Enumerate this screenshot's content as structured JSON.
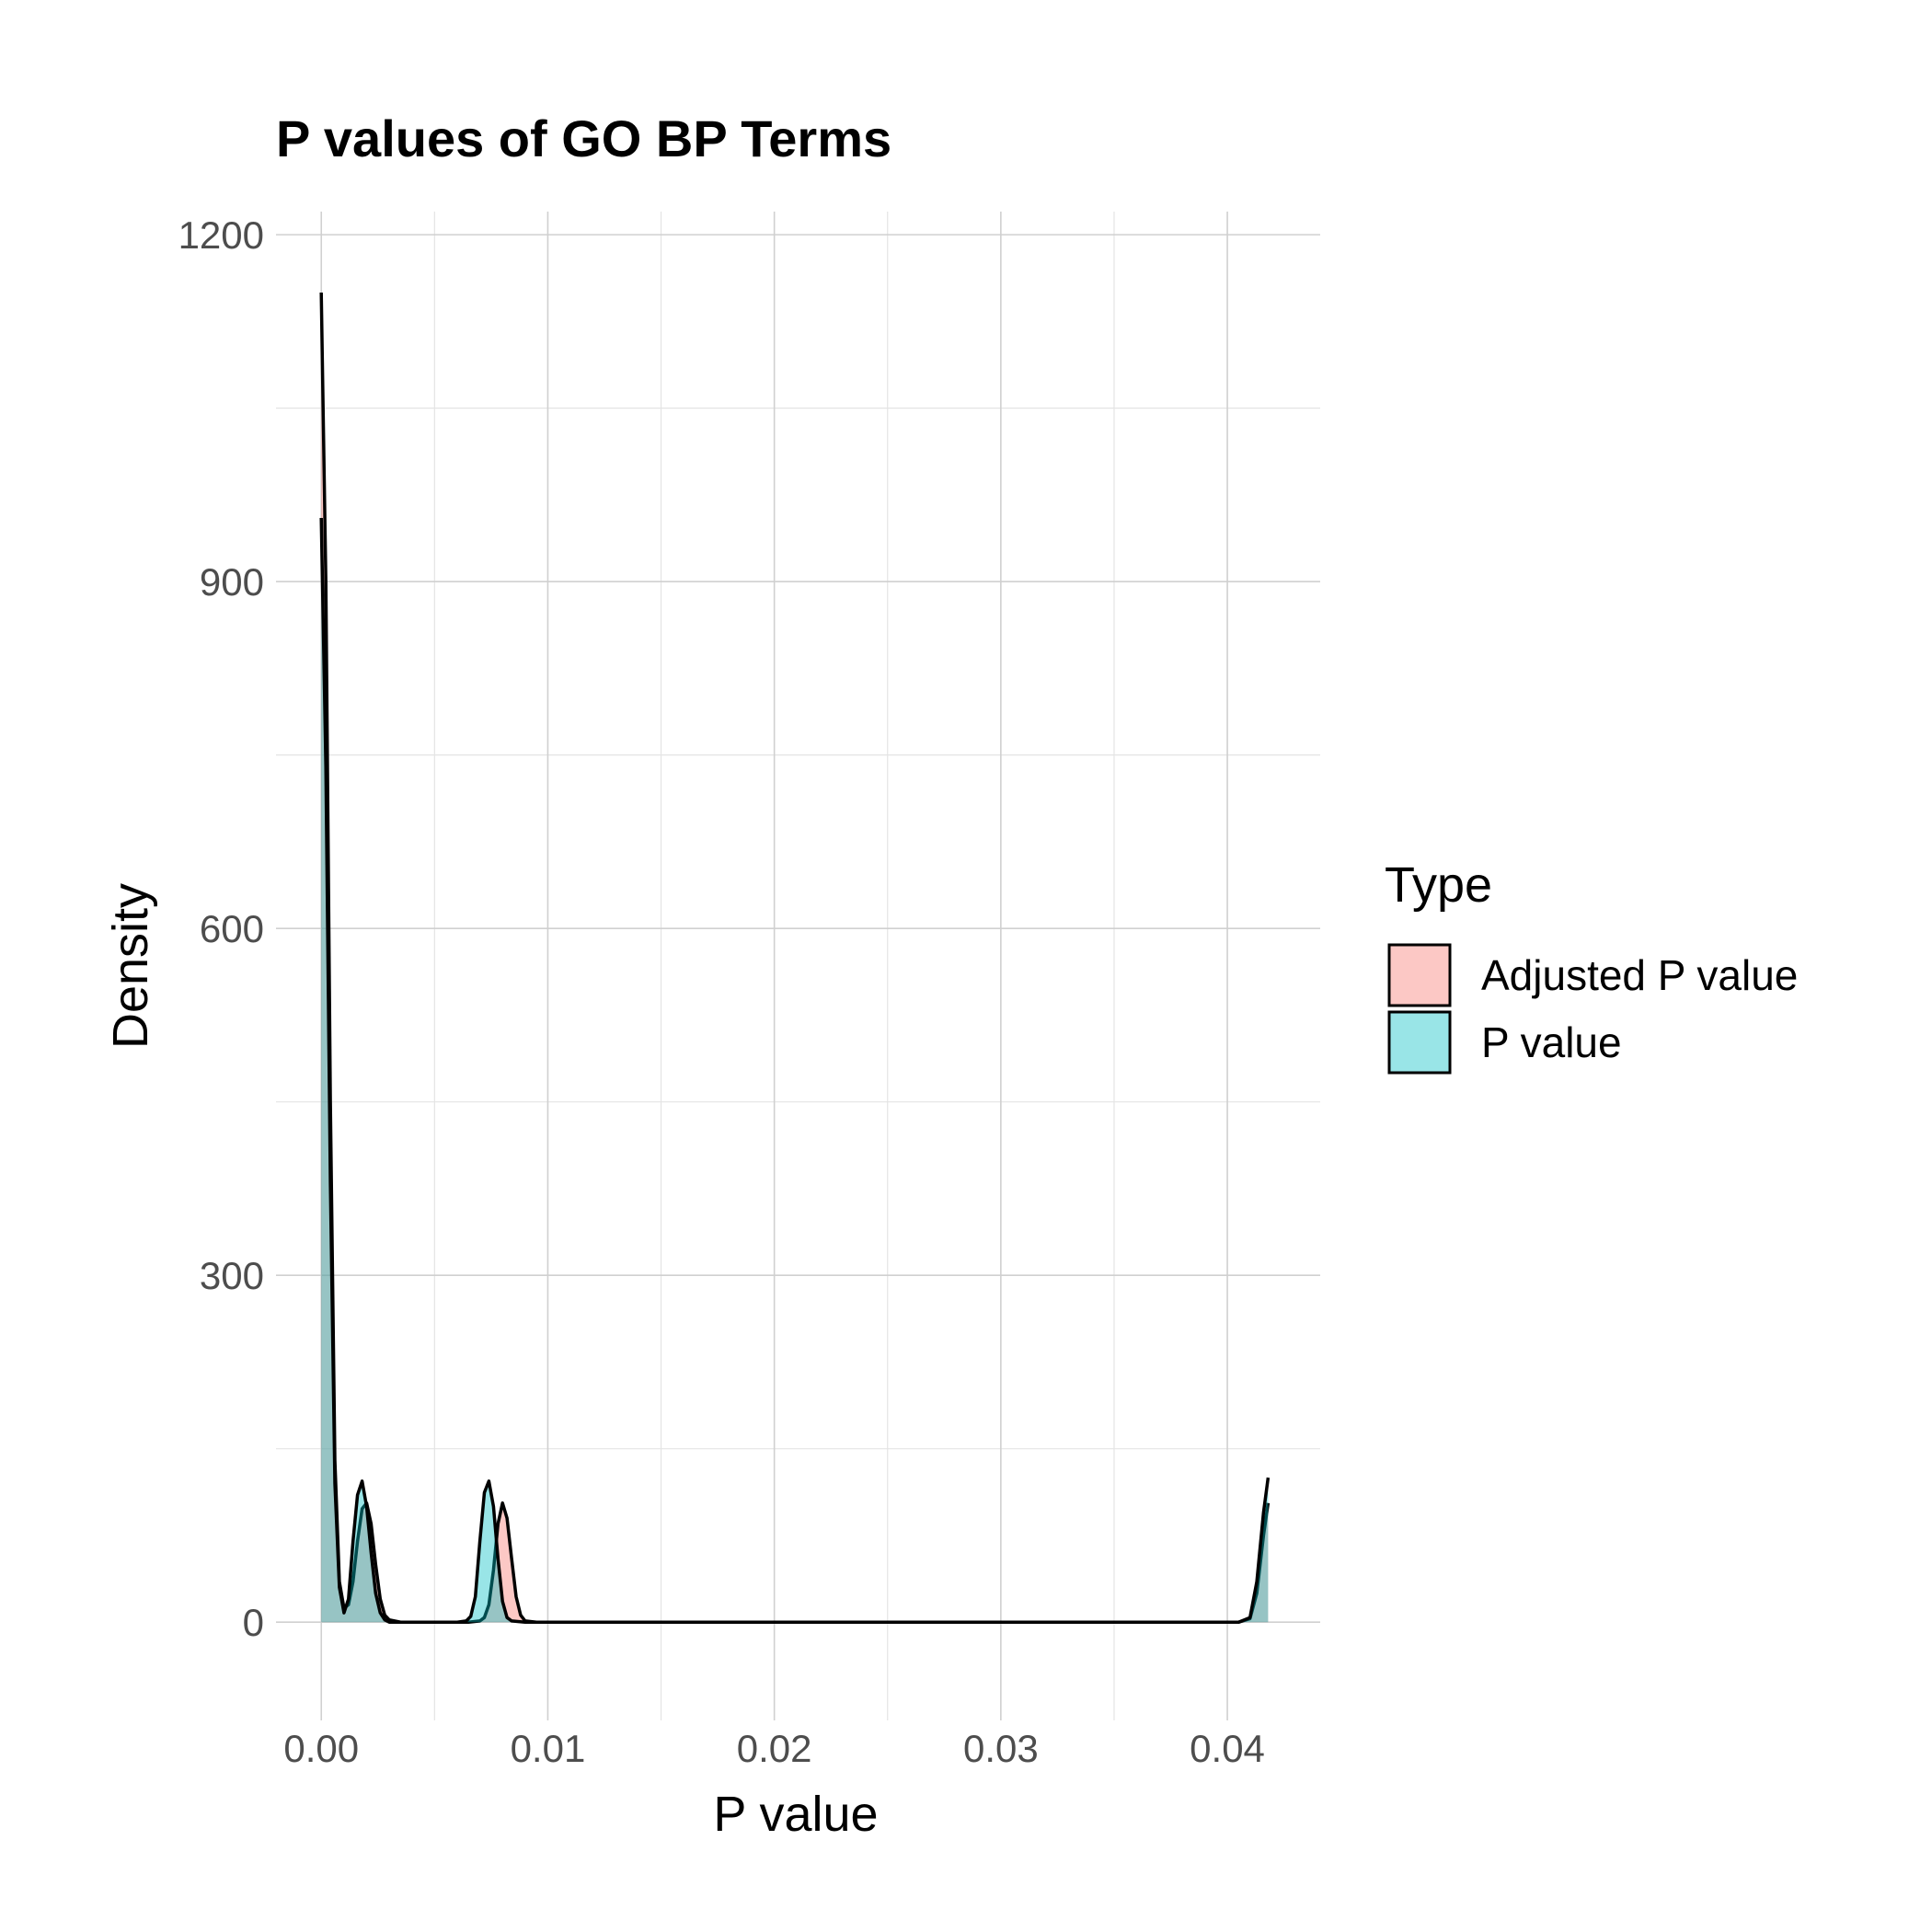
{
  "chart_data": {
    "type": "area",
    "title": "P values of GO BP Terms",
    "xlabel": "P value",
    "ylabel": "Density",
    "xlim": [
      -0.002,
      0.0441
    ],
    "ylim": [
      -85,
      1220
    ],
    "xticks": [
      0.0,
      0.01,
      0.02,
      0.03,
      0.04
    ],
    "xtick_labels": [
      "0.00",
      "0.01",
      "0.02",
      "0.03",
      "0.04"
    ],
    "yticks": [
      0,
      300,
      600,
      900,
      1200
    ],
    "ytick_labels": [
      "0",
      "300",
      "600",
      "900",
      "1200"
    ],
    "grid": true,
    "legend": {
      "title": "Type",
      "position": "right"
    },
    "series": [
      {
        "name": "Adjusted P value",
        "fill": "#F8766D",
        "outline": "#000000",
        "x": [
          0.0,
          0.0002,
          0.0004,
          0.0006,
          0.0008,
          0.001,
          0.0012,
          0.0014,
          0.0016,
          0.0018,
          0.002,
          0.0022,
          0.0024,
          0.0026,
          0.0028,
          0.003,
          0.0035,
          0.0065,
          0.007,
          0.0072,
          0.0074,
          0.0076,
          0.0078,
          0.008,
          0.0082,
          0.0084,
          0.0086,
          0.0088,
          0.009,
          0.0095,
          0.0405,
          0.041,
          0.0413,
          0.0416,
          0.0418
        ],
        "values": [
          1150,
          900,
          450,
          140,
          35,
          12,
          15,
          35,
          70,
          98,
          103,
          85,
          50,
          20,
          6,
          2,
          0,
          0,
          1,
          4,
          15,
          45,
          85,
          103,
          90,
          55,
          22,
          6,
          1,
          0,
          0,
          3,
          25,
          75,
          103
        ]
      },
      {
        "name": "P value",
        "fill": "#00BFC4",
        "outline": "#000000",
        "x": [
          0.0,
          0.0002,
          0.0004,
          0.0006,
          0.0008,
          0.001,
          0.0012,
          0.0014,
          0.0016,
          0.0018,
          0.002,
          0.0022,
          0.0024,
          0.0026,
          0.0028,
          0.003,
          0.0035,
          0.006,
          0.0064,
          0.0066,
          0.0068,
          0.007,
          0.0072,
          0.0074,
          0.0076,
          0.0078,
          0.008,
          0.0082,
          0.0084,
          0.009,
          0.0405,
          0.041,
          0.0413,
          0.0416,
          0.0418
        ],
        "values": [
          955,
          740,
          380,
          120,
          30,
          8,
          20,
          70,
          110,
          122,
          100,
          60,
          25,
          8,
          2,
          0,
          0,
          0,
          1,
          5,
          22,
          70,
          112,
          122,
          100,
          55,
          18,
          4,
          1,
          0,
          0,
          4,
          35,
          95,
          125
        ]
      }
    ]
  }
}
